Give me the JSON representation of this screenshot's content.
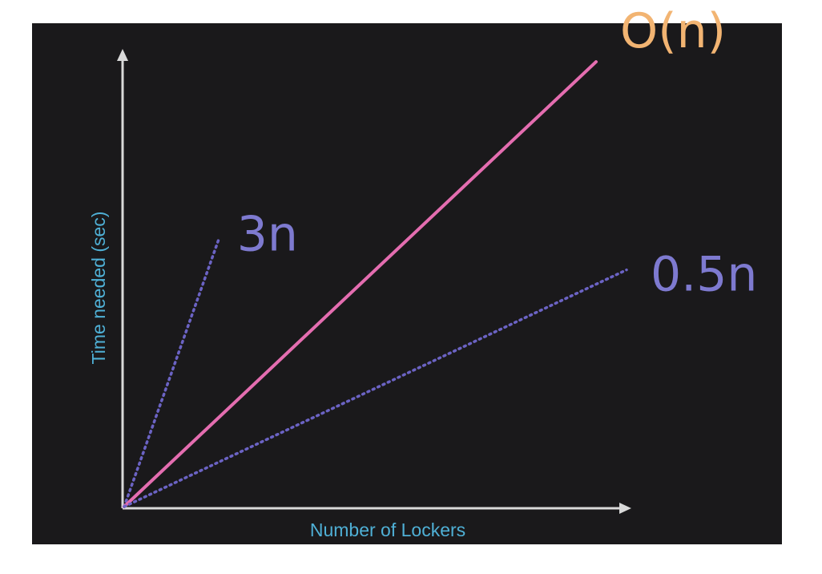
{
  "chart_data": {
    "type": "line",
    "xlabel": "Number of Lockers",
    "ylabel": "Time needed (sec)",
    "xlim": [
      0,
      10
    ],
    "ylim": [
      0,
      10
    ],
    "grid": false,
    "series": [
      {
        "name": "3n",
        "slope": 3,
        "x": [
          0,
          1.25
        ],
        "y": [
          0,
          3.75
        ],
        "style": "dotted",
        "color": "#6b63c4",
        "label_color": "#7e7ad0"
      },
      {
        "name": "O(n)",
        "slope": 1,
        "x": [
          0,
          6.2
        ],
        "y": [
          0,
          6.2
        ],
        "style": "solid",
        "color": "#e46db0",
        "label_color": "#f2b472"
      },
      {
        "name": "0.5n",
        "slope": 0.5,
        "x": [
          0,
          6.6
        ],
        "y": [
          0,
          3.3
        ],
        "style": "dotted",
        "color": "#6b63c4",
        "label_color": "#7e7ad0"
      }
    ]
  }
}
